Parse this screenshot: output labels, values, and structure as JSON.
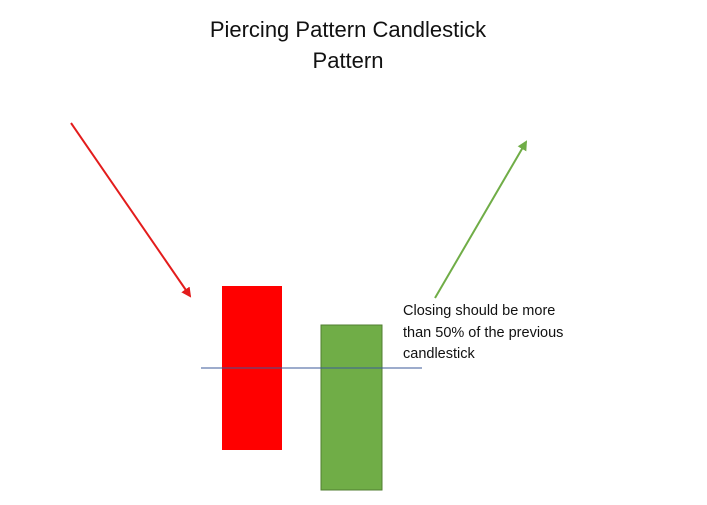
{
  "title": {
    "line1": "Piercing Pattern Candlestick",
    "line2": "Pattern"
  },
  "annotation": {
    "line1": "Closing should be more",
    "line2": "than 50% of the previous",
    "line3": "candlestick"
  },
  "colors": {
    "bearish_candle": "#ff0000",
    "bullish_candle": "#70ad47",
    "downtrend_arrow": "#e31c1c",
    "uptrend_arrow": "#70ad47",
    "midpoint_line": "#3b5a9a"
  },
  "icons": {
    "downtrend": "arrow-down-right-icon",
    "uptrend": "arrow-up-right-icon"
  }
}
